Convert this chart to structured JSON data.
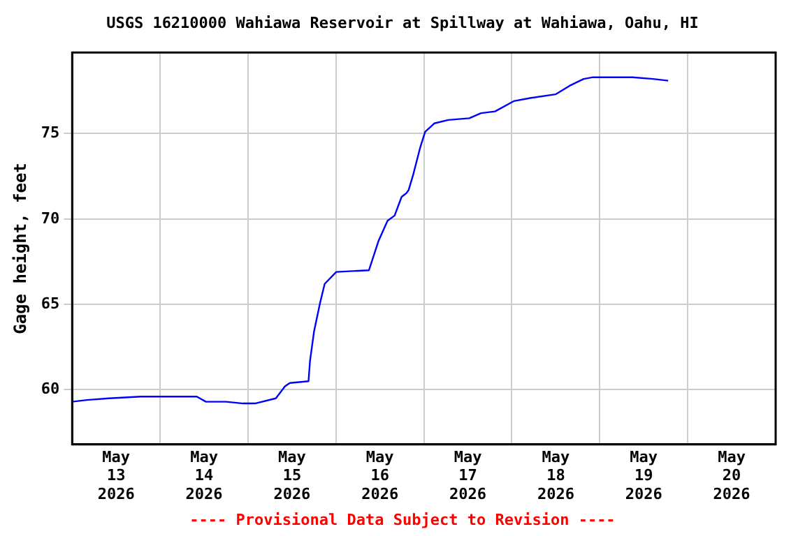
{
  "chart_data": {
    "type": "line",
    "title": "USGS 16210000 Wahiawa Reservoir at Spillway at Wahiawa, Oahu, HI",
    "ylabel": "Gage height, feet",
    "annotations": [
      "---- Provisional Data Subject to Revision ----"
    ],
    "x": [
      "2026-05-13T00:00",
      "2026-05-13T04:00",
      "2026-05-13T10:00",
      "2026-05-13T18:45",
      "2026-05-14T10:00",
      "2026-05-14T12:30",
      "2026-05-14T18:00",
      "2026-05-14T22:40",
      "2026-05-15T01:55",
      "2026-05-15T07:35",
      "2026-05-15T10:05",
      "2026-05-15T11:25",
      "2026-05-15T16:30",
      "2026-05-15T16:55",
      "2026-05-15T18:00",
      "2026-05-15T19:40",
      "2026-05-15T20:55",
      "2026-05-16T00:05",
      "2026-05-16T09:00",
      "2026-05-16T11:35",
      "2026-05-16T14:05",
      "2026-05-16T16:00",
      "2026-05-16T17:55",
      "2026-05-16T19:10",
      "2026-05-16T19:50",
      "2026-05-16T21:05",
      "2026-05-16T23:00",
      "2026-05-17T00:20",
      "2026-05-17T02:50",
      "2026-05-17T06:40",
      "2026-05-17T12:25",
      "2026-05-17T15:35",
      "2026-05-17T19:25",
      "2026-05-18T00:30",
      "2026-05-18T05:30",
      "2026-05-18T11:55",
      "2026-05-18T15:45",
      "2026-05-18T19:35",
      "2026-05-18T22:10",
      "2026-05-19T08:55",
      "2026-05-19T14:35",
      "2026-05-19T18:40"
    ],
    "series": [
      {
        "color": "#0000ff",
        "values": [
          59.3,
          59.4,
          59.5,
          59.6,
          59.6,
          59.3,
          59.3,
          59.2,
          59.2,
          59.5,
          60.2,
          60.4,
          60.5,
          61.7,
          63.4,
          65.1,
          66.2,
          66.9,
          67.0,
          68.7,
          69.9,
          70.2,
          71.3,
          71.5,
          71.7,
          72.6,
          74.2,
          75.1,
          75.6,
          75.8,
          75.9,
          76.2,
          76.3,
          76.9,
          77.1,
          77.3,
          77.8,
          78.2,
          78.3,
          78.3,
          78.2,
          78.1
        ]
      }
    ],
    "xlim": [
      "2026-05-13T00:00",
      "2026-05-21T00:00"
    ],
    "xticks": [
      {
        "value": "2026-05-13T12:00",
        "label": "May 13 2026"
      },
      {
        "value": "2026-05-14T00:00",
        "label": null
      },
      {
        "value": "2026-05-14T12:00",
        "label": "May 14 2026"
      },
      {
        "value": "2026-05-15T00:00",
        "label": null
      },
      {
        "value": "2026-05-15T12:00",
        "label": "May 15 2026"
      },
      {
        "value": "2026-05-16T00:00",
        "label": null
      },
      {
        "value": "2026-05-16T12:00",
        "label": "May 16 2026"
      },
      {
        "value": "2026-05-17T00:00",
        "label": null
      },
      {
        "value": "2026-05-17T12:00",
        "label": "May 17 2026"
      },
      {
        "value": "2026-05-18T00:00",
        "label": null
      },
      {
        "value": "2026-05-18T12:00",
        "label": "May 18 2026"
      },
      {
        "value": "2026-05-19T00:00",
        "label": null
      },
      {
        "value": "2026-05-19T12:00",
        "label": "May 19 2026"
      },
      {
        "value": "2026-05-20T00:00",
        "label": null
      },
      {
        "value": "2026-05-20T12:00",
        "label": "May 20 2026"
      }
    ],
    "ylim": [
      56.8,
      79.75
    ],
    "yticks": [
      60,
      65,
      70,
      75
    ],
    "grid": true,
    "legend": false,
    "marker": "none",
    "line_style": "solid"
  }
}
